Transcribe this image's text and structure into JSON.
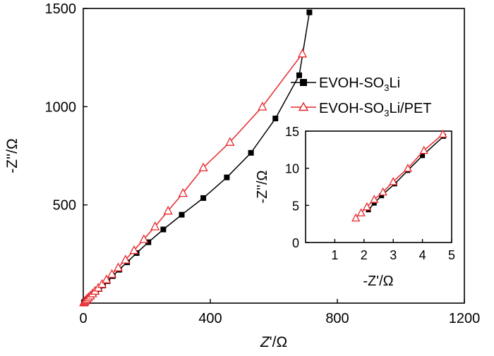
{
  "colors": {
    "series_black": "#000000",
    "series_red": "#e8262a",
    "background": "#ffffff"
  },
  "chart_data": [
    {
      "type": "line",
      "role": "main",
      "xlabel": {
        "italic": "Z",
        "rest": "'/Ω"
      },
      "ylabel": "-Z''/Ω",
      "xlim": [
        0,
        1200
      ],
      "ylim": [
        0,
        1500
      ],
      "xticks": [
        0,
        400,
        800,
        1200
      ],
      "xtick_labels": [
        "0",
        "400",
        "800",
        "1200"
      ],
      "yticks": [
        500,
        1000,
        1500
      ],
      "ytick_labels": [
        "500",
        "1000",
        "1500"
      ],
      "legend": {
        "position": "upper-right",
        "entries": [
          {
            "series": 0,
            "pre": "EVOH-SO",
            "sub": "3",
            "post": "Li"
          },
          {
            "series": 1,
            "pre": "EVOH-SO",
            "sub": "3",
            "post": "Li/PET"
          }
        ]
      },
      "series": [
        {
          "name": "EVOH-SO3Li",
          "marker": "square-filled",
          "color": "#000000",
          "x": [
            2,
            4,
            7,
            10,
            14,
            19,
            25,
            32,
            40,
            50,
            62,
            76,
            93,
            113,
            138,
            168,
            205,
            252,
            310,
            378,
            452,
            528,
            605,
            680,
            712
          ],
          "y": [
            3,
            6,
            10,
            14,
            20,
            27,
            35,
            45,
            57,
            72,
            90,
            112,
            138,
            170,
            208,
            255,
            310,
            375,
            450,
            535,
            640,
            765,
            940,
            1160,
            1480
          ]
        },
        {
          "name": "EVOH-SO3Li/PET",
          "marker": "triangle-open",
          "color": "#e8262a",
          "x": [
            1.7,
            3,
            5,
            8,
            11,
            16,
            22,
            29,
            37,
            47,
            59,
            73,
            90,
            110,
            133,
            160,
            191,
            226,
            267,
            314,
            378,
            462,
            564,
            690
          ],
          "y": [
            3,
            6,
            10,
            15,
            21,
            29,
            38,
            49,
            62,
            78,
            97,
            120,
            148,
            181,
            221,
            269,
            325,
            390,
            470,
            560,
            690,
            820,
            1000,
            1270
          ]
        }
      ]
    },
    {
      "type": "line",
      "role": "inset",
      "position": "lower-right",
      "xlabel": "-Z'/Ω",
      "ylabel": "-Z''/Ω",
      "xlim": [
        0,
        5
      ],
      "ylim": [
        0,
        15
      ],
      "xticks": [
        1,
        2,
        3,
        4,
        5
      ],
      "xtick_labels": [
        "1",
        "2",
        "3",
        "4",
        "5"
      ],
      "yticks": [
        0,
        5,
        10,
        15
      ],
      "ytick_labels": [
        "0",
        "5",
        "10",
        "15"
      ],
      "series": [
        {
          "name": "EVOH-SO3Li",
          "marker": "square-filled",
          "color": "#000000",
          "x": [
            2.15,
            2.35,
            2.6,
            3.05,
            3.5,
            4.0,
            4.72
          ],
          "y": [
            4.4,
            5.3,
            6.3,
            7.9,
            9.7,
            11.7,
            14.3
          ]
        },
        {
          "name": "EVOH-SO3Li/PET",
          "marker": "triangle-open",
          "color": "#e8262a",
          "x": [
            1.72,
            1.9,
            2.1,
            2.35,
            2.65,
            3.0,
            3.5,
            4.05,
            4.7
          ],
          "y": [
            3.3,
            4.0,
            4.8,
            5.8,
            6.8,
            8.2,
            10.0,
            12.4,
            14.6
          ]
        }
      ]
    }
  ]
}
